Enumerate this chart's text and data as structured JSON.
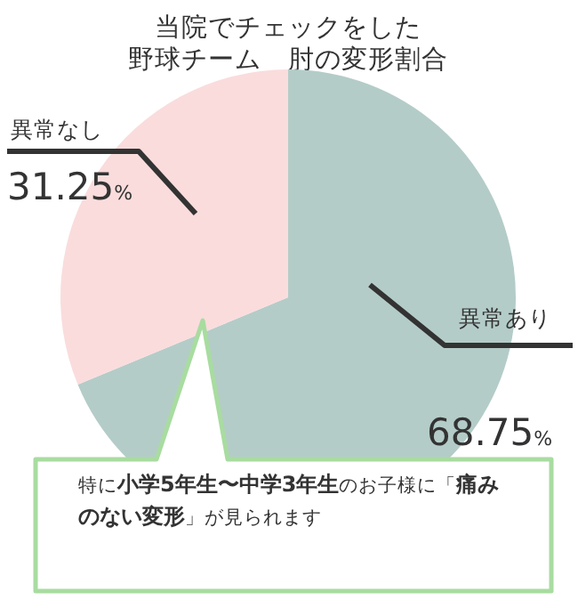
{
  "chart_data": {
    "type": "pie",
    "title": "当院でチェックをした",
    "subtitle": "野球チーム　肘の変形割合",
    "categories": [
      "異常あり",
      "異常なし"
    ],
    "values": [
      68.75,
      31.25
    ],
    "colors": [
      "#b4ccc8",
      "#fadcdc"
    ],
    "value_labels": [
      "68.75%",
      "31.25%"
    ],
    "annotations": [
      "特に**小学5年生〜中学3年生**のお子様に「**痛みのない変形**」が見られます"
    ]
  }
}
